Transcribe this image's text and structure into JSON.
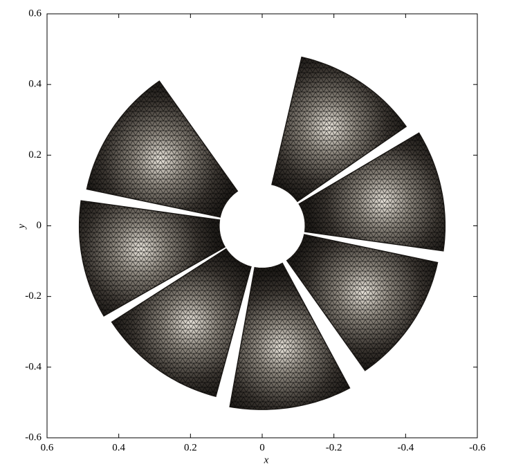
{
  "chart_data": {
    "type": "sector",
    "xlabel": "x",
    "ylabel": "y",
    "xlim": [
      0.6,
      -0.6
    ],
    "ylim": [
      -0.6,
      0.6
    ],
    "xticks": [
      0.6,
      0.4,
      0.2,
      0,
      -0.2,
      -0.4,
      -0.6
    ],
    "yticks": [
      -0.6,
      -0.4,
      -0.2,
      0,
      0.2,
      0.4,
      0.6
    ],
    "color": "#1e1b18",
    "sectors": [
      {
        "angle": [
          103,
          145
        ],
        "radius": [
          0.12,
          0.49
        ]
      },
      {
        "angle": [
          149,
          188
        ],
        "radius": [
          0.12,
          0.51
        ]
      },
      {
        "angle": [
          192,
          235
        ],
        "radius": [
          0.12,
          0.5
        ]
      },
      {
        "angle": [
          242,
          280
        ],
        "radius": [
          0.12,
          0.52
        ]
      },
      {
        "angle": [
          285,
          327
        ],
        "radius": [
          0.12,
          0.5
        ]
      },
      {
        "angle": [
          -30,
          8
        ],
        "radius": [
          0.12,
          0.51
        ]
      },
      {
        "angle": [
          12,
          55
        ],
        "radius": [
          0.12,
          0.5
        ]
      }
    ]
  }
}
